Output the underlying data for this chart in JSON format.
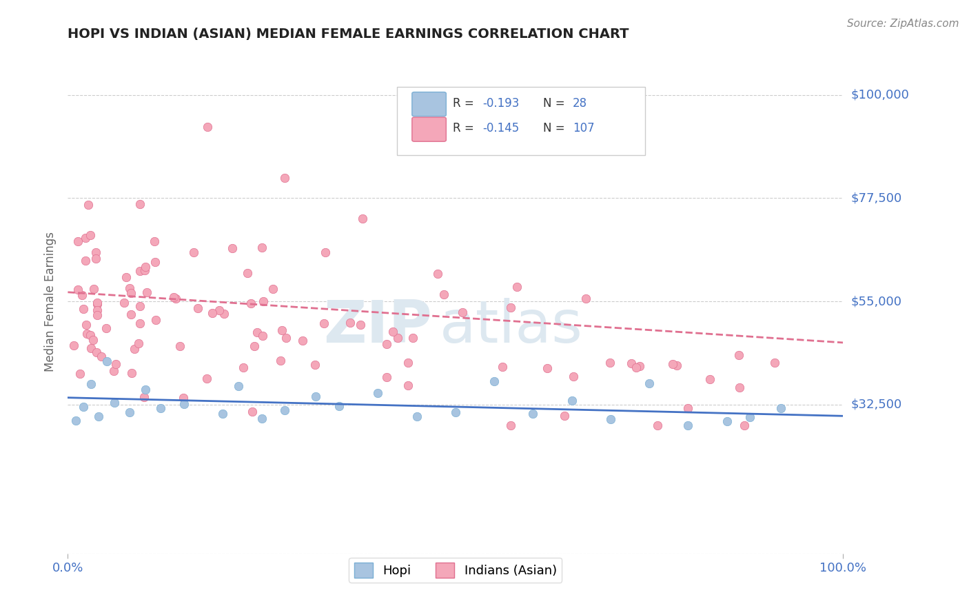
{
  "title": "HOPI VS INDIAN (ASIAN) MEDIAN FEMALE EARNINGS CORRELATION CHART",
  "source": "Source: ZipAtlas.com",
  "ylabel": "Median Female Earnings",
  "xlim": [
    0,
    100
  ],
  "ylim": [
    0,
    110000
  ],
  "yticks": [
    0,
    32500,
    55000,
    77500,
    100000
  ],
  "ytick_labels": [
    "",
    "$32,500",
    "$55,000",
    "$77,500",
    "$100,000"
  ],
  "background_color": "#ffffff",
  "grid_color": "#cccccc",
  "label_color": "#4472c4",
  "hopi_color": "#a8c4e0",
  "hopi_edge": "#7bafd4",
  "indian_color": "#f4a7b9",
  "indian_edge": "#e07090",
  "hopi_line_color": "#4472c4",
  "indian_line_color": "#e07090",
  "hopi_R": "-0.193",
  "hopi_N": "28",
  "indian_R": "-0.145",
  "indian_N": "107",
  "hopi_trend_x": [
    0,
    100
  ],
  "hopi_trend_y": [
    34000,
    30000
  ],
  "indian_trend_x": [
    0,
    100
  ],
  "indian_trend_y": [
    57000,
    46000
  ]
}
